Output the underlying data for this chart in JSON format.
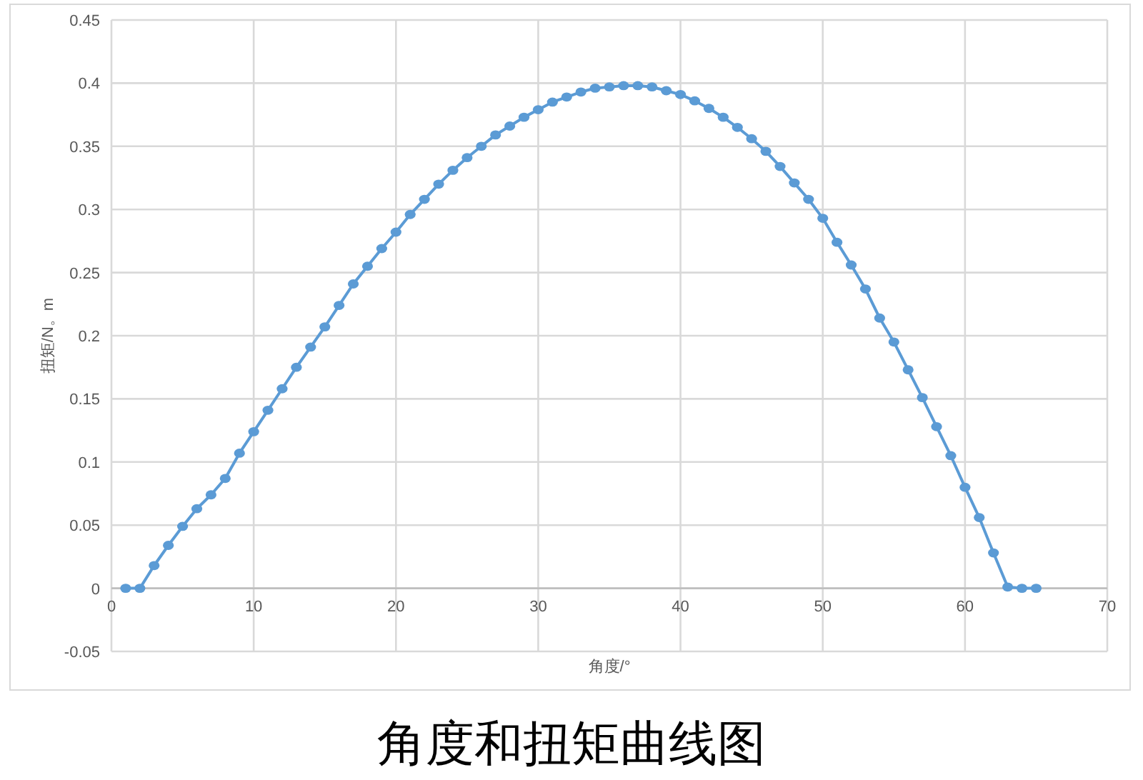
{
  "chart_data": {
    "type": "line",
    "title": "角度和扭矩曲线图",
    "xlabel": "角度/°",
    "ylabel": "扭矩/N。m",
    "x": [
      1,
      2,
      3,
      4,
      5,
      6,
      7,
      8,
      9,
      10,
      11,
      12,
      13,
      14,
      15,
      16,
      17,
      18,
      19,
      20,
      21,
      22,
      23,
      24,
      25,
      26,
      27,
      28,
      29,
      30,
      31,
      32,
      33,
      34,
      35,
      36,
      37,
      38,
      39,
      40,
      41,
      42,
      43,
      44,
      45,
      46,
      47,
      48,
      49,
      50,
      51,
      52,
      53,
      54,
      55,
      56,
      57,
      58,
      59,
      60,
      61,
      62,
      63,
      64,
      65
    ],
    "series": [
      {
        "color": "#5b9bd5",
        "values": [
          0,
          0,
          0.018,
          0.034,
          0.049,
          0.063,
          0.074,
          0.087,
          0.107,
          0.124,
          0.141,
          0.158,
          0.175,
          0.191,
          0.207,
          0.224,
          0.241,
          0.255,
          0.269,
          0.282,
          0.296,
          0.308,
          0.32,
          0.331,
          0.341,
          0.35,
          0.359,
          0.366,
          0.373,
          0.379,
          0.385,
          0.389,
          0.393,
          0.396,
          0.397,
          0.398,
          0.398,
          0.397,
          0.394,
          0.391,
          0.386,
          0.38,
          0.373,
          0.365,
          0.356,
          0.346,
          0.334,
          0.321,
          0.308,
          0.293,
          0.274,
          0.256,
          0.237,
          0.214,
          0.195,
          0.173,
          0.151,
          0.128,
          0.105,
          0.08,
          0.056,
          0.028,
          0.001,
          0,
          0
        ]
      }
    ],
    "xlim": [
      0,
      70
    ],
    "ylim": [
      -0.05,
      0.45
    ],
    "xticks": [
      0,
      10,
      20,
      30,
      40,
      50,
      60,
      70
    ],
    "yticks": [
      -0.05,
      0,
      0.05,
      0.1,
      0.15,
      0.2,
      0.25,
      0.3,
      0.35,
      0.4,
      0.45
    ],
    "grid": true,
    "marker": "circle",
    "line_style": "solid"
  }
}
